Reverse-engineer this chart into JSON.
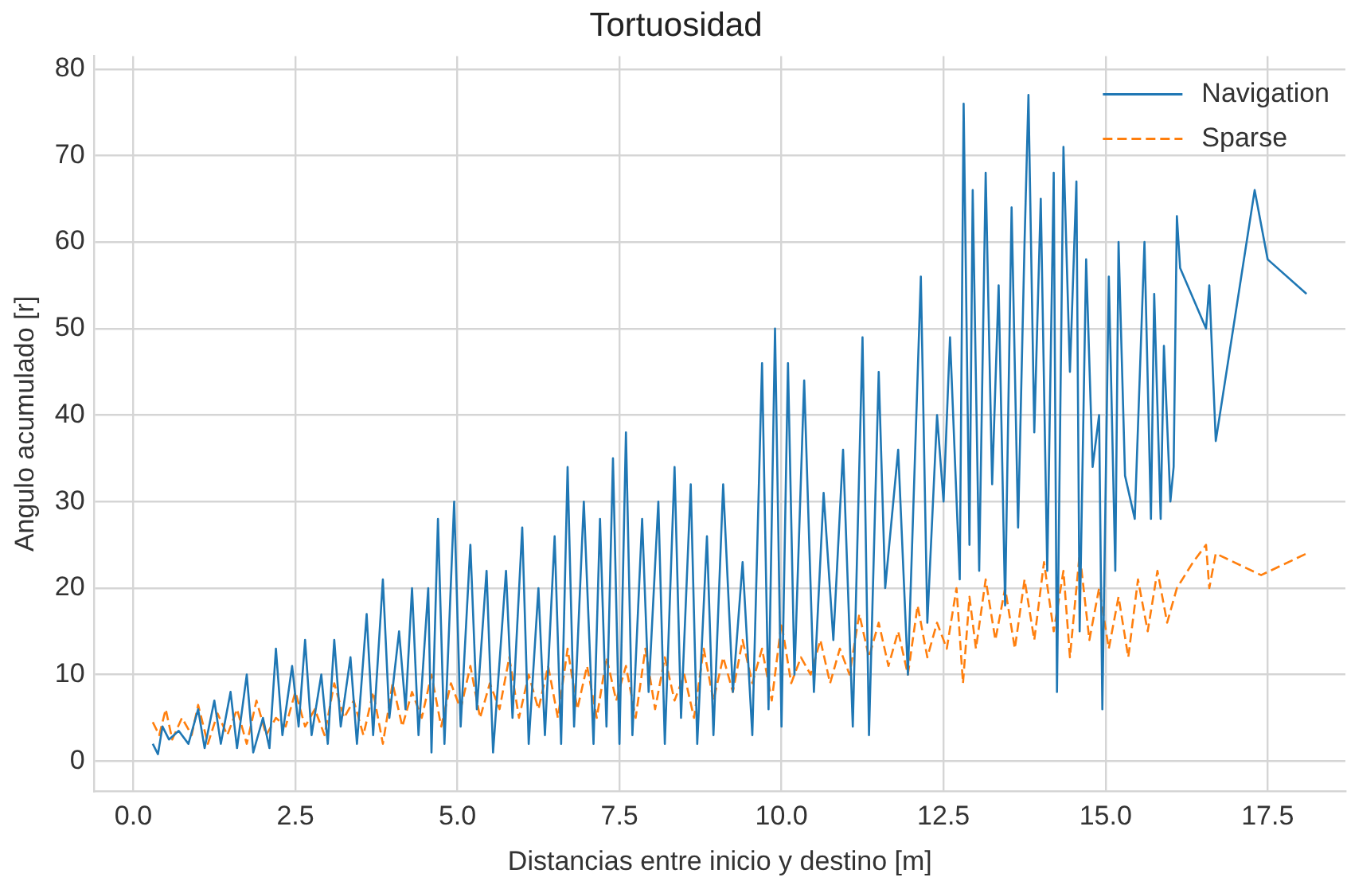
{
  "chart_data": {
    "type": "line",
    "title": "Tortuosidad",
    "xlabel": "Distancias entre inicio y destino [m]",
    "ylabel": "Angulo acumulado [r]",
    "xlim": [
      -0.6,
      18.7
    ],
    "ylim": [
      -3.5,
      81.5
    ],
    "xticks": [
      {
        "value": 0,
        "label": "0.0"
      },
      2.5,
      {
        "value": 5,
        "label": "5.0"
      },
      7.5,
      {
        "value": 10,
        "label": "10.0"
      },
      12.5,
      {
        "value": 15,
        "label": "15.0"
      },
      17.5
    ],
    "yticks": [
      0,
      10,
      20,
      30,
      40,
      50,
      60,
      70,
      80
    ],
    "grid": true,
    "legend": "top right",
    "marker": "none",
    "series": [
      {
        "name": "Navigation",
        "color": "#1f77b4",
        "line_style": "solid",
        "x": [
          0.3,
          0.38,
          0.45,
          0.55,
          0.7,
          0.85,
          1.0,
          1.1,
          1.25,
          1.35,
          1.5,
          1.6,
          1.75,
          1.85,
          2.0,
          2.1,
          2.2,
          2.3,
          2.45,
          2.55,
          2.65,
          2.75,
          2.9,
          3.0,
          3.1,
          3.2,
          3.35,
          3.45,
          3.6,
          3.7,
          3.85,
          3.95,
          4.1,
          4.2,
          4.3,
          4.4,
          4.55,
          4.6,
          4.7,
          4.8,
          4.95,
          5.05,
          5.2,
          5.3,
          5.45,
          5.55,
          5.75,
          5.85,
          6.0,
          6.1,
          6.25,
          6.35,
          6.5,
          6.6,
          6.7,
          6.8,
          6.95,
          7.1,
          7.2,
          7.3,
          7.4,
          7.5,
          7.6,
          7.7,
          7.85,
          7.95,
          8.1,
          8.2,
          8.35,
          8.45,
          8.6,
          8.7,
          8.85,
          8.95,
          9.1,
          9.25,
          9.4,
          9.55,
          9.7,
          9.8,
          9.9,
          10.0,
          10.1,
          10.2,
          10.35,
          10.5,
          10.65,
          10.8,
          10.95,
          11.1,
          11.25,
          11.35,
          11.5,
          11.6,
          11.8,
          11.95,
          12.15,
          12.25,
          12.4,
          12.5,
          12.6,
          12.75,
          12.81,
          12.9,
          12.95,
          13.05,
          13.15,
          13.25,
          13.35,
          13.45,
          13.55,
          13.65,
          13.75,
          13.81,
          13.9,
          14.0,
          14.1,
          14.2,
          14.25,
          14.35,
          14.45,
          14.55,
          14.6,
          14.7,
          14.8,
          14.9,
          14.95,
          15.05,
          15.15,
          15.2,
          15.3,
          15.45,
          15.6,
          15.7,
          15.75,
          15.85,
          15.9,
          16.0,
          16.05,
          16.1,
          16.15,
          16.55,
          16.6,
          16.7,
          17.3,
          17.5,
          18.1
        ],
        "values": [
          2,
          0.8,
          4,
          2.5,
          3.5,
          2,
          6,
          1.5,
          7,
          2,
          8,
          1.5,
          10,
          1,
          5,
          1.5,
          13,
          3,
          11,
          4,
          14,
          3,
          10,
          2,
          14,
          4,
          12,
          2,
          17,
          3,
          21,
          5,
          15,
          6,
          20,
          3,
          20,
          1,
          28,
          2,
          30,
          4,
          25,
          6,
          22,
          1,
          22,
          5,
          27,
          2,
          20,
          3,
          26,
          2,
          34,
          4,
          30,
          2,
          28,
          4,
          35,
          2,
          38,
          3,
          28,
          8,
          30,
          2,
          34,
          5,
          32,
          2,
          26,
          3,
          32,
          8,
          23,
          3,
          46,
          6,
          50,
          4,
          46,
          10,
          44,
          8,
          31,
          14,
          36,
          4,
          49,
          3,
          45,
          20,
          36,
          10,
          56,
          16,
          40,
          30,
          49,
          21,
          76,
          25,
          66,
          22,
          68,
          32,
          55,
          18,
          64,
          27,
          60,
          77,
          38,
          65,
          22,
          68,
          8,
          71,
          45,
          67,
          15,
          58,
          34,
          40,
          6,
          56,
          22,
          60,
          33,
          28,
          60,
          28,
          54,
          28,
          48,
          30,
          34,
          63,
          57,
          50,
          55,
          37,
          66,
          58,
          54
        ]
      },
      {
        "name": "Sparse",
        "color": "#ff7f0e",
        "line_style": "dashed",
        "x": [
          0.3,
          0.4,
          0.5,
          0.6,
          0.75,
          0.9,
          1.0,
          1.15,
          1.3,
          1.45,
          1.6,
          1.75,
          1.9,
          2.05,
          2.2,
          2.35,
          2.5,
          2.65,
          2.8,
          2.95,
          3.1,
          3.25,
          3.4,
          3.55,
          3.7,
          3.85,
          4.0,
          4.15,
          4.3,
          4.45,
          4.6,
          4.75,
          4.9,
          5.05,
          5.2,
          5.35,
          5.5,
          5.65,
          5.8,
          5.95,
          6.1,
          6.25,
          6.4,
          6.55,
          6.7,
          6.85,
          7.0,
          7.15,
          7.3,
          7.45,
          7.6,
          7.75,
          7.9,
          8.05,
          8.2,
          8.35,
          8.5,
          8.65,
          8.8,
          8.95,
          9.1,
          9.25,
          9.4,
          9.55,
          9.7,
          9.85,
          10.0,
          10.15,
          10.3,
          10.45,
          10.6,
          10.75,
          10.9,
          11.05,
          11.2,
          11.35,
          11.5,
          11.65,
          11.8,
          11.95,
          12.1,
          12.25,
          12.4,
          12.55,
          12.7,
          12.8,
          12.9,
          13.0,
          13.15,
          13.3,
          13.45,
          13.6,
          13.75,
          13.9,
          14.05,
          14.2,
          14.35,
          14.45,
          14.6,
          14.75,
          14.9,
          15.05,
          15.2,
          15.35,
          15.5,
          15.65,
          15.8,
          15.95,
          16.1,
          16.35,
          16.55,
          16.6,
          16.7,
          17.4,
          18.1
        ],
        "values": [
          4.5,
          3,
          6,
          2.5,
          5,
          3,
          6.5,
          2,
          5.5,
          3,
          6,
          2,
          7,
          3,
          5,
          4,
          8,
          4,
          6,
          3,
          9,
          5,
          7,
          3,
          8,
          2,
          9,
          4,
          8,
          5,
          10,
          4,
          9,
          6,
          11,
          5,
          9,
          6,
          12,
          5,
          10,
          6,
          11,
          5,
          13,
          6,
          11,
          5,
          12,
          7,
          11,
          5,
          13,
          6,
          12,
          7,
          10,
          5,
          13,
          7,
          12,
          8,
          14,
          9,
          13,
          7,
          16,
          9,
          12,
          10,
          14,
          9,
          13,
          10,
          17,
          12,
          16,
          11,
          15,
          10,
          18,
          12,
          16,
          13,
          20,
          9,
          19,
          13,
          21,
          14,
          20,
          13,
          21,
          14,
          23,
          15,
          22,
          12,
          24,
          14,
          20,
          13,
          19,
          12,
          21,
          15,
          22,
          16,
          20,
          23,
          25,
          20,
          24,
          21.5,
          24
        ]
      }
    ]
  }
}
